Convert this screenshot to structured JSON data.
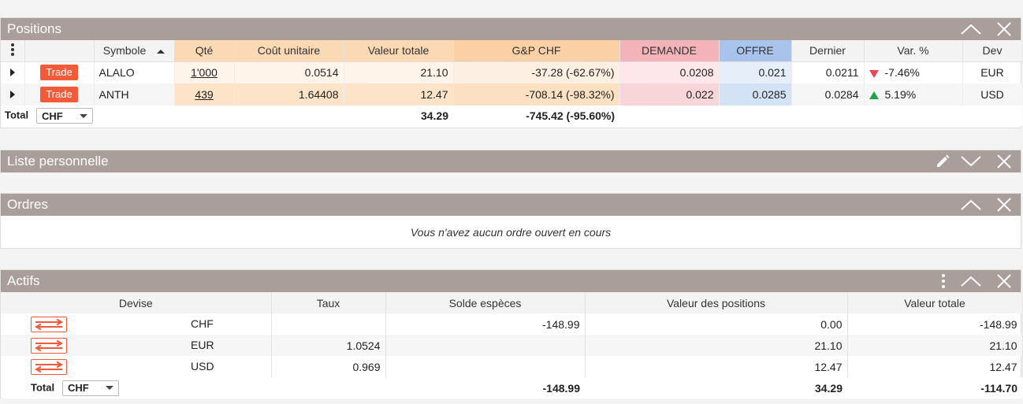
{
  "positions": {
    "title": "Positions",
    "columns": {
      "symbole": "Symbole",
      "qte": "Qté",
      "cout": "Coût unitaire",
      "valeur": "Valeur totale",
      "gp": "G&P CHF",
      "demande": "DEMANDE",
      "offre": "OFFRE",
      "dernier": "Dernier",
      "var": "Var. %",
      "dev": "Dev"
    },
    "trade_label": "Trade",
    "rows": [
      {
        "symbol": "ALALO",
        "qty": "1'000",
        "cout": "0.0514",
        "valeur": "21.10",
        "gp": "-37.28 (-62.67%)",
        "demande": "0.0208",
        "offre": "0.021",
        "dernier": "0.0211",
        "var": "-7.46%",
        "var_dir": "down",
        "dev": "EUR"
      },
      {
        "symbol": "ANTH",
        "qty": "439",
        "cout": "1.64408",
        "valeur": "12.47",
        "gp": "-708.14 (-98.32%)",
        "demande": "0.022",
        "offre": "0.0285",
        "dernier": "0.0284",
        "var": "5.19%",
        "var_dir": "up",
        "dev": "USD"
      }
    ],
    "total": {
      "label": "Total",
      "currency": "CHF",
      "valeur": "34.29",
      "gp": "-745.42 (-95.60%)"
    }
  },
  "liste": {
    "title": "Liste personnelle"
  },
  "ordres": {
    "title": "Ordres",
    "empty": "Vous n'avez aucun ordre ouvert en cours"
  },
  "actifs": {
    "title": "Actifs",
    "columns": {
      "devise": "Devise",
      "taux": "Taux",
      "solde": "Solde espèces",
      "valpos": "Valeur des positions",
      "valtot": "Valeur totale"
    },
    "rows": [
      {
        "devise": "CHF",
        "taux": "",
        "solde": "-148.99",
        "valpos": "0.00",
        "valtot": "-148.99"
      },
      {
        "devise": "EUR",
        "taux": "1.0524",
        "solde": "",
        "valpos": "21.10",
        "valtot": "21.10"
      },
      {
        "devise": "USD",
        "taux": "0.969",
        "solde": "",
        "valpos": "12.47",
        "valtot": "12.47"
      }
    ],
    "total": {
      "label": "Total",
      "currency": "CHF",
      "solde": "-148.99",
      "valpos": "34.29",
      "valtot": "-114.70"
    }
  },
  "colors": {
    "header": "#a99e99",
    "trade": "#f25b3a",
    "down": "#e8485a",
    "up": "#1fa34a"
  }
}
